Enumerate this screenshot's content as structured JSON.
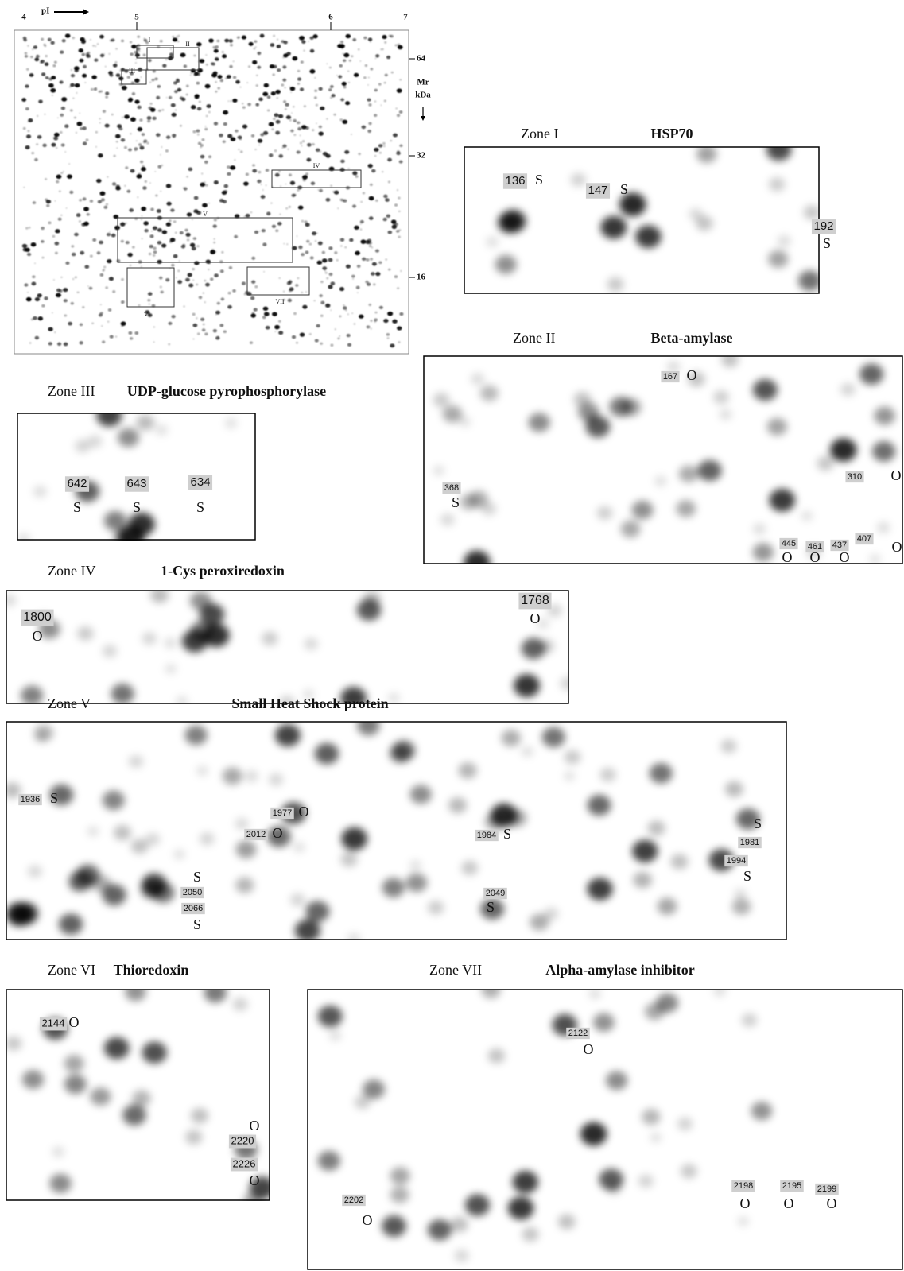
{
  "overview": {
    "pi_label": "pI",
    "pi_ticks": [
      "4",
      "5",
      "6",
      "7"
    ],
    "mr_ticks": [
      "64",
      "32",
      "16"
    ],
    "mr_label": "Mr",
    "mr_unit": "kDa",
    "zone_marks": [
      "I",
      "II",
      "III",
      "IV",
      "V",
      "VI",
      "VII"
    ]
  },
  "zones": [
    {
      "zone": "Zone I",
      "protein": "HSP70",
      "spots": [
        {
          "id": "136",
          "class": "S"
        },
        {
          "id": "147",
          "class": "S"
        },
        {
          "id": "192",
          "class": "S"
        }
      ]
    },
    {
      "zone": "Zone II",
      "protein": "Beta-amylase",
      "spots": [
        {
          "id": "167",
          "class": "O"
        },
        {
          "id": "310",
          "class": "O"
        },
        {
          "id": "368",
          "class": "S"
        },
        {
          "id": "445",
          "class": "O"
        },
        {
          "id": "461",
          "class": "O"
        },
        {
          "id": "437",
          "class": "O"
        },
        {
          "id": "407",
          "class": "O"
        }
      ]
    },
    {
      "zone": "Zone III",
      "protein": "UDP-glucose pyrophosphorylase",
      "spots": [
        {
          "id": "642",
          "class": "S"
        },
        {
          "id": "643",
          "class": "S"
        },
        {
          "id": "634",
          "class": "S"
        }
      ]
    },
    {
      "zone": "Zone IV",
      "protein": "1-Cys peroxiredoxin",
      "spots": [
        {
          "id": "1800",
          "class": "O"
        },
        {
          "id": "1768",
          "class": "O"
        }
      ]
    },
    {
      "zone": "Zone V",
      "protein": "Small Heat Shock protein",
      "spots": [
        {
          "id": "1936",
          "class": "S"
        },
        {
          "id": "1977",
          "class": "O"
        },
        {
          "id": "2012",
          "class": "O"
        },
        {
          "id": "1984",
          "class": "S"
        },
        {
          "id": "1981",
          "class": "S"
        },
        {
          "id": "1994",
          "class": "S"
        },
        {
          "id": "2050",
          "class": "S"
        },
        {
          "id": "2066",
          "class": "S"
        },
        {
          "id": "2049",
          "class": "S"
        }
      ]
    },
    {
      "zone": "Zone VI",
      "protein": "Thioredoxin",
      "spots": [
        {
          "id": "2144",
          "class": "O"
        },
        {
          "id": "2220",
          "class": "O"
        },
        {
          "id": "2226",
          "class": "O"
        }
      ]
    },
    {
      "zone": "Zone VII",
      "protein": "Alpha-amylase inhibitor",
      "spots": [
        {
          "id": "2122",
          "class": "O"
        },
        {
          "id": "2202",
          "class": "O"
        },
        {
          "id": "2198",
          "class": "O"
        },
        {
          "id": "2195",
          "class": "O"
        },
        {
          "id": "2199",
          "class": "O"
        }
      ]
    }
  ]
}
